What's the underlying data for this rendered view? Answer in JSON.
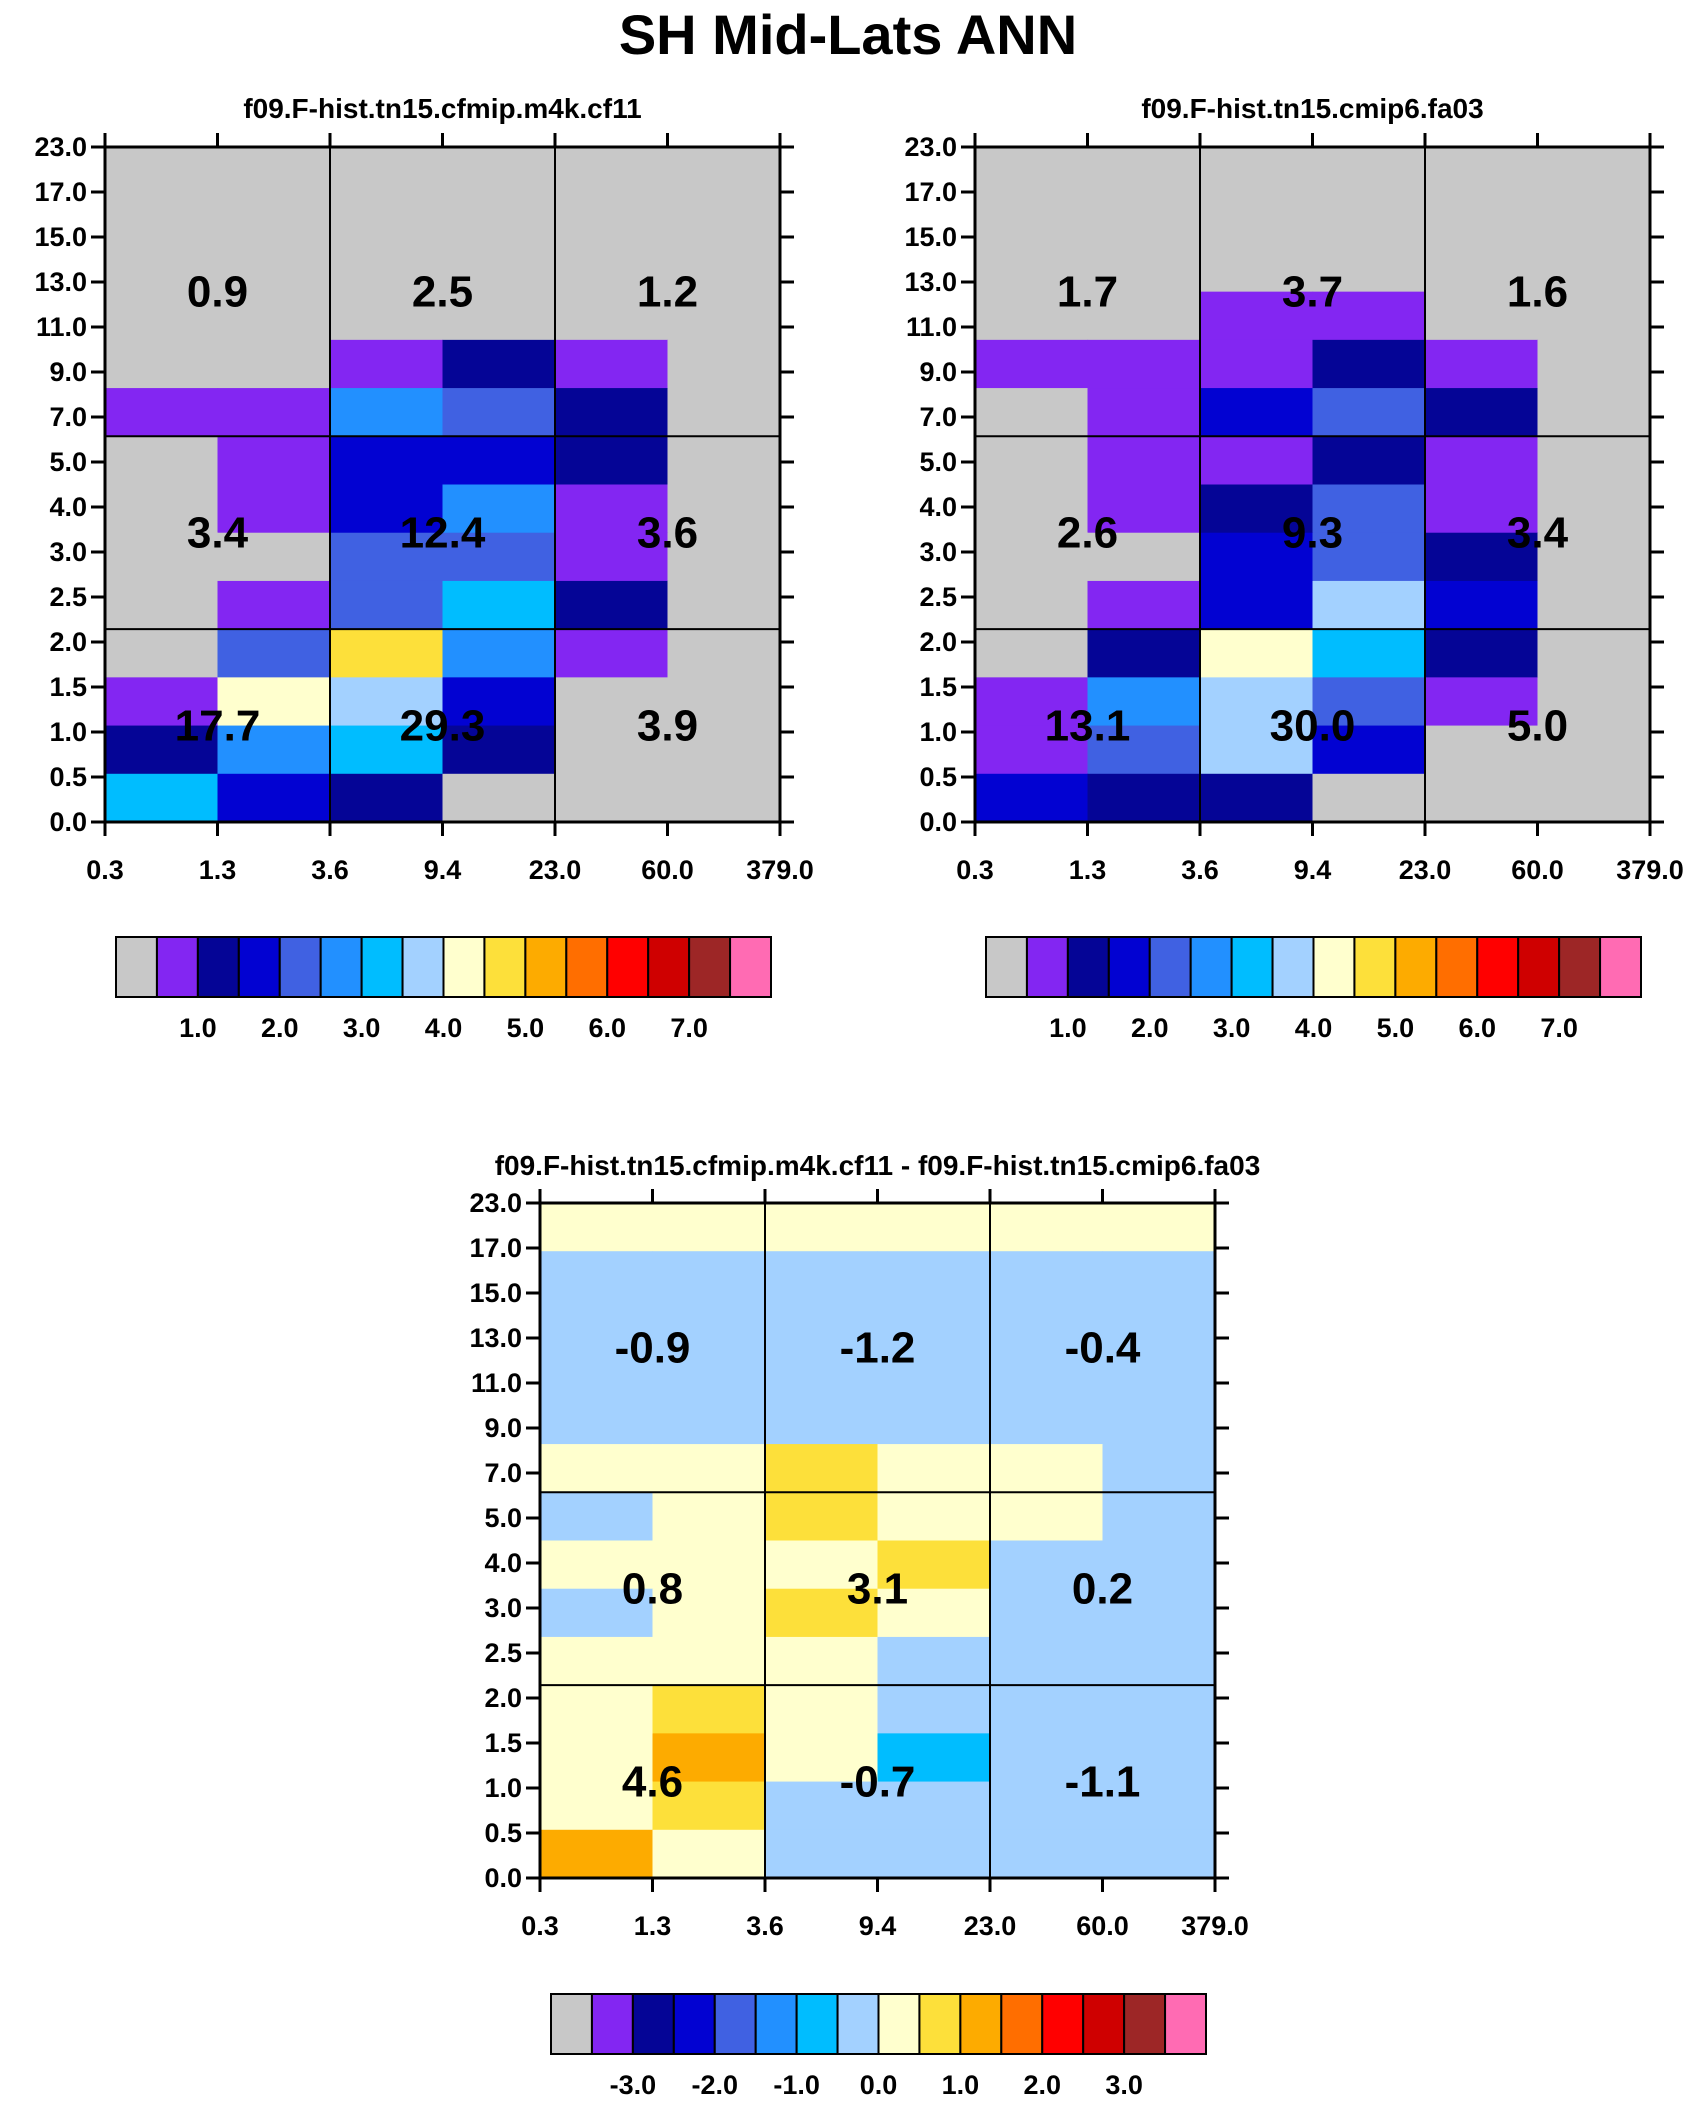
{
  "figure_title": "SH Mid-Lats ANN",
  "palette_abs": [
    "#c8c8c8",
    "#8326f2",
    "#050596",
    "#0202d2",
    "#4061e2",
    "#2290ff",
    "#00bdff",
    "#a3d1ff",
    "#ffffce",
    "#fde03a",
    "#fdab00",
    "#ff6e00",
    "#ff0000",
    "#cf0000",
    "#9d2626",
    "#ff6bb3"
  ],
  "palette_diff": [
    "#c8c8c8",
    "#8326f2",
    "#050596",
    "#0202d2",
    "#4061e2",
    "#2290ff",
    "#00bdff",
    "#a3d1ff",
    "#ffffce",
    "#fde03a",
    "#fdab00",
    "#ff6e00",
    "#ff0000",
    "#cf0000",
    "#9d2626",
    "#ff6bb3"
  ],
  "chart_data": [
    {
      "type": "heatmap",
      "title": "f09.F-hist.tn15.cfmip.m4k.cf11",
      "x_tick_labels": [
        "0.3",
        "1.3",
        "3.6",
        "9.4",
        "23.0",
        "60.0",
        "379.0"
      ],
      "y_tick_labels": [
        "0.0",
        "0.5",
        "1.0",
        "1.5",
        "2.0",
        "2.5",
        "3.0",
        "4.0",
        "5.0",
        "7.0",
        "9.0",
        "11.0",
        "13.0",
        "15.0",
        "17.0",
        "23.0"
      ],
      "cell_color_index_rows_top_to_bottom": [
        [
          0,
          0,
          0,
          0,
          0,
          0
        ],
        [
          0,
          0,
          0,
          0,
          0,
          0
        ],
        [
          0,
          0,
          0,
          0,
          0,
          0
        ],
        [
          0,
          0,
          0,
          0,
          0,
          0
        ],
        [
          0,
          0,
          1,
          2,
          1,
          0
        ],
        [
          1,
          1,
          5,
          4,
          2,
          0
        ],
        [
          0,
          1,
          3,
          3,
          2,
          0
        ],
        [
          0,
          1,
          3,
          5,
          1,
          0
        ],
        [
          0,
          0,
          4,
          4,
          1,
          0
        ],
        [
          0,
          1,
          4,
          6,
          2,
          0
        ],
        [
          0,
          4,
          9,
          5,
          1,
          0
        ],
        [
          1,
          8,
          7,
          3,
          0,
          0
        ],
        [
          2,
          5,
          6,
          2,
          0,
          0
        ],
        [
          6,
          3,
          2,
          0,
          0,
          0
        ]
      ],
      "group_values_rows_top_to_bottom": [
        [
          "0.9",
          "2.5",
          "1.2"
        ],
        [
          "3.4",
          "12.4",
          "3.6"
        ],
        [
          "17.7",
          "29.3",
          "3.9"
        ]
      ],
      "colorbar_labels": [
        "1.0",
        "2.0",
        "3.0",
        "4.0",
        "5.0",
        "6.0",
        "7.0"
      ]
    },
    {
      "type": "heatmap",
      "title": "f09.F-hist.tn15.cmip6.fa03",
      "x_tick_labels": [
        "0.3",
        "1.3",
        "3.6",
        "9.4",
        "23.0",
        "60.0",
        "379.0"
      ],
      "y_tick_labels": [
        "0.0",
        "0.5",
        "1.0",
        "1.5",
        "2.0",
        "2.5",
        "3.0",
        "4.0",
        "5.0",
        "7.0",
        "9.0",
        "11.0",
        "13.0",
        "15.0",
        "17.0",
        "23.0"
      ],
      "cell_color_index_rows_top_to_bottom": [
        [
          0,
          0,
          0,
          0,
          0,
          0
        ],
        [
          0,
          0,
          0,
          0,
          0,
          0
        ],
        [
          0,
          0,
          0,
          0,
          0,
          0
        ],
        [
          0,
          0,
          1,
          1,
          0,
          0
        ],
        [
          1,
          1,
          1,
          2,
          1,
          0
        ],
        [
          0,
          1,
          3,
          4,
          2,
          0
        ],
        [
          0,
          1,
          1,
          2,
          1,
          0
        ],
        [
          0,
          1,
          2,
          4,
          1,
          0
        ],
        [
          0,
          0,
          3,
          4,
          2,
          0
        ],
        [
          0,
          1,
          3,
          7,
          3,
          0
        ],
        [
          0,
          2,
          8,
          6,
          2,
          0
        ],
        [
          1,
          5,
          7,
          4,
          1,
          0
        ],
        [
          1,
          4,
          7,
          3,
          0,
          0
        ],
        [
          3,
          2,
          2,
          0,
          0,
          0
        ]
      ],
      "group_values_rows_top_to_bottom": [
        [
          "1.7",
          "3.7",
          "1.6"
        ],
        [
          "2.6",
          "9.3",
          "3.4"
        ],
        [
          "13.1",
          "30.0",
          "5.0"
        ]
      ],
      "colorbar_labels": [
        "1.0",
        "2.0",
        "3.0",
        "4.0",
        "5.0",
        "6.0",
        "7.0"
      ]
    },
    {
      "type": "heatmap",
      "title": "f09.F-hist.tn15.cfmip.m4k.cf11 - f09.F-hist.tn15.cmip6.fa03",
      "x_tick_labels": [
        "0.3",
        "1.3",
        "3.6",
        "9.4",
        "23.0",
        "60.0",
        "379.0"
      ],
      "y_tick_labels": [
        "0.0",
        "0.5",
        "1.0",
        "1.5",
        "2.0",
        "2.5",
        "3.0",
        "4.0",
        "5.0",
        "7.0",
        "9.0",
        "11.0",
        "13.0",
        "15.0",
        "17.0",
        "23.0"
      ],
      "cell_color_index_rows_top_to_bottom": [
        [
          8,
          8,
          8,
          8,
          8,
          8
        ],
        [
          7,
          7,
          7,
          7,
          7,
          7
        ],
        [
          7,
          7,
          7,
          7,
          7,
          7
        ],
        [
          7,
          7,
          7,
          7,
          7,
          7
        ],
        [
          7,
          7,
          7,
          7,
          7,
          7
        ],
        [
          8,
          8,
          9,
          8,
          8,
          7
        ],
        [
          7,
          8,
          9,
          8,
          8,
          7
        ],
        [
          8,
          8,
          8,
          9,
          7,
          7
        ],
        [
          7,
          8,
          9,
          8,
          7,
          7
        ],
        [
          8,
          8,
          8,
          7,
          7,
          7
        ],
        [
          8,
          9,
          8,
          7,
          7,
          7
        ],
        [
          8,
          10,
          8,
          6,
          7,
          7
        ],
        [
          8,
          9,
          7,
          7,
          7,
          7
        ],
        [
          10,
          8,
          7,
          7,
          7,
          7
        ]
      ],
      "group_values_rows_top_to_bottom": [
        [
          "-0.9",
          "-1.2",
          "-0.4"
        ],
        [
          "0.8",
          "3.1",
          "0.2"
        ],
        [
          "4.6",
          "-0.7",
          "-1.1"
        ]
      ],
      "colorbar_labels": [
        "-3.0",
        "-2.0",
        "-1.0",
        "0.0",
        "1.0",
        "2.0",
        "3.0"
      ]
    }
  ]
}
